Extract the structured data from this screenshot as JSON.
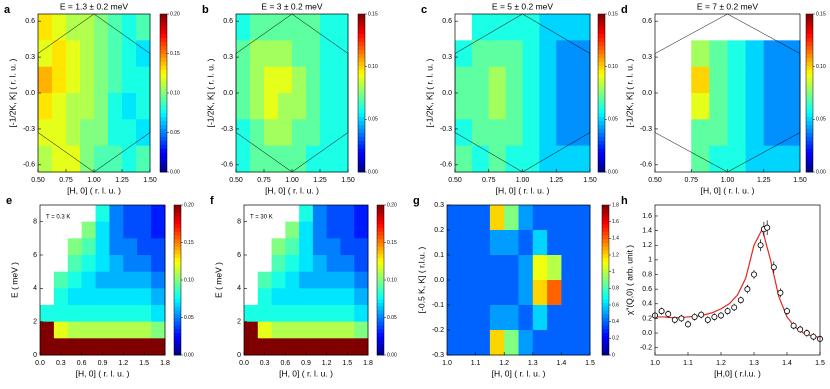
{
  "chart_data": [
    {
      "type": "heatmap",
      "panel_label": "a",
      "title": "E = 1.3 ± 0.2 meV",
      "x_label": "[H, 0] ( r. l. u. )",
      "y_label": "[-1/2K, K] ( r. l. u. )",
      "xlim": [
        0.5,
        1.5
      ],
      "xticks": [
        {
          "value": 0.5,
          "label": "0.50"
        },
        0.75,
        {
          "value": 1,
          "label": "1.00"
        },
        1.25,
        {
          "value": 1.5,
          "label": "1.50"
        }
      ],
      "ylim": [
        -0.66,
        0.66
      ],
      "yticks": [
        -0.6,
        -0.3,
        {
          "value": 0,
          "label": "0.0"
        },
        0.3,
        0.6
      ],
      "zlim": [
        0,
        0.2
      ],
      "zticks": [
        {
          "value": 0,
          "label": "0.00"
        },
        0.05,
        {
          "value": 0.1,
          "label": "0.10"
        },
        0.15,
        {
          "value": 0.2,
          "label": "0.20"
        }
      ],
      "z": [
        [
          0.13,
          0.12,
          0.11,
          0.11,
          0.1,
          0.09,
          0.08,
          0.09
        ],
        [
          0.12,
          0.13,
          0.12,
          0.11,
          0.1,
          0.09,
          0.08,
          0.07
        ],
        [
          0.14,
          0.13,
          0.12,
          0.11,
          0.1,
          0.09,
          0.08,
          0.08
        ],
        [
          0.13,
          0.12,
          0.11,
          0.11,
          0.1,
          0.08,
          0.07,
          0.08
        ],
        [
          0.12,
          0.12,
          0.11,
          0.1,
          0.1,
          0.08,
          0.08,
          0.07
        ],
        [
          0.11,
          0.12,
          0.12,
          0.1,
          0.09,
          0.09,
          0.08,
          0.09
        ]
      ]
    },
    {
      "type": "heatmap",
      "panel_label": "b",
      "title": "E = 3 ± 0.2 meV",
      "x_label": "[H, 0] ( r. l. u. )",
      "y_label": "[-1/2K, K] ( r. l. u. )",
      "xlim": [
        0.5,
        1.5
      ],
      "xticks": [
        {
          "value": 0.5,
          "label": "0.50"
        },
        0.75,
        {
          "value": 1,
          "label": "1.00"
        },
        1.25,
        {
          "value": 1.5,
          "label": "1.50"
        }
      ],
      "ylim": [
        -0.66,
        0.66
      ],
      "yticks": [
        -0.6,
        -0.3,
        {
          "value": 0,
          "label": "0.0"
        },
        0.3,
        0.6
      ],
      "zlim": [
        0,
        0.15
      ],
      "zticks": [
        {
          "value": 0,
          "label": "0.00"
        },
        0.05,
        {
          "value": 0.1,
          "label": "0.10"
        },
        0.15
      ],
      "z": [
        [
          0.06,
          0.07,
          0.07,
          0.07,
          0.07,
          0.07,
          0.06,
          0.06
        ],
        [
          0.07,
          0.08,
          0.08,
          0.08,
          0.07,
          0.07,
          0.06,
          0.06
        ],
        [
          0.07,
          0.08,
          0.09,
          0.09,
          0.08,
          0.07,
          0.06,
          0.06
        ],
        [
          0.07,
          0.08,
          0.09,
          0.08,
          0.08,
          0.07,
          0.06,
          0.06
        ],
        [
          0.06,
          0.07,
          0.08,
          0.08,
          0.07,
          0.07,
          0.06,
          0.06
        ],
        [
          0.06,
          0.07,
          0.07,
          0.07,
          0.07,
          0.06,
          0.06,
          0.06
        ]
      ]
    },
    {
      "type": "heatmap",
      "panel_label": "c",
      "title": "E = 5 ± 0.2 meV",
      "x_label": "[H, 0] ( r. l. u. )",
      "y_label": "[-1/2K, K] ( r. l. u. )",
      "xlim": [
        0.5,
        1.5
      ],
      "xticks": [
        {
          "value": 0.5,
          "label": "0.50"
        },
        0.75,
        {
          "value": 1,
          "label": "1.00"
        },
        1.25,
        {
          "value": 1.5,
          "label": "1.50"
        }
      ],
      "ylim": [
        -0.66,
        0.66
      ],
      "yticks": [
        -0.6,
        -0.3,
        {
          "value": 0,
          "label": "0.0"
        },
        0.3,
        0.6
      ],
      "zlim": [
        0,
        0.15
      ],
      "zticks": [
        {
          "value": 0,
          "label": "0.00"
        },
        0.05,
        {
          "value": 0.1,
          "label": "0.10"
        },
        0.15
      ],
      "z": [
        [
          null,
          0.06,
          0.06,
          0.06,
          0.06,
          0.05,
          0.05,
          0.05
        ],
        [
          0.06,
          0.07,
          0.07,
          0.07,
          0.06,
          0.05,
          0.04,
          0.04
        ],
        [
          0.07,
          0.07,
          0.08,
          0.07,
          0.06,
          0.05,
          0.04,
          0.04
        ],
        [
          0.07,
          0.07,
          0.08,
          0.07,
          0.06,
          0.05,
          0.04,
          0.04
        ],
        [
          0.06,
          0.07,
          0.07,
          0.07,
          0.06,
          0.05,
          0.04,
          0.04
        ],
        [
          0.07,
          0.06,
          0.07,
          0.06,
          0.06,
          0.05,
          0.05,
          0.05
        ]
      ]
    },
    {
      "type": "heatmap",
      "panel_label": "d",
      "title": "E = 7 ± 0.2 meV",
      "x_label": "[H, 0] ( r. l. u. )",
      "y_label": "[-1/2K, K] ( r. l. u. )",
      "xlim": [
        0.5,
        1.5
      ],
      "xticks": [
        {
          "value": 0.5,
          "label": "0.50"
        },
        0.75,
        {
          "value": 1,
          "label": "1.00"
        },
        1.25,
        {
          "value": 1.5,
          "label": "1.50"
        }
      ],
      "ylim": [
        -0.66,
        0.66
      ],
      "yticks": [
        -0.6,
        -0.3,
        {
          "value": 0,
          "label": "0.0"
        },
        0.3,
        0.6
      ],
      "zlim": [
        0,
        0.15
      ],
      "zticks": [
        {
          "value": 0,
          "label": "0.00"
        },
        0.05,
        {
          "value": 0.1,
          "label": "0.10"
        },
        0.15
      ],
      "z": [
        [
          null,
          null,
          null,
          null,
          null,
          null,
          null,
          null
        ],
        [
          null,
          null,
          0.08,
          0.07,
          0.06,
          0.05,
          0.04,
          0.04
        ],
        [
          null,
          null,
          0.1,
          0.07,
          0.06,
          0.05,
          0.04,
          0.04
        ],
        [
          null,
          null,
          0.09,
          0.07,
          0.06,
          0.05,
          0.04,
          0.04
        ],
        [
          null,
          null,
          0.07,
          0.07,
          0.06,
          0.05,
          0.04,
          0.04
        ],
        [
          null,
          null,
          0.07,
          0.06,
          0.06,
          0.05,
          0.05,
          0.05
        ]
      ]
    },
    {
      "type": "heatmap",
      "panel_label": "e",
      "annotation": "T = 0.3 K",
      "x_label": "[H, 0] ( r. l. u. )",
      "y_label": "E ( meV )",
      "xlim": [
        0,
        1.8
      ],
      "xticks": [
        {
          "value": 0,
          "label": "0.0"
        },
        0.3,
        0.6,
        0.9,
        1.2,
        1.5,
        1.8
      ],
      "ylim": [
        0,
        9
      ],
      "yticks": [
        0,
        2,
        4,
        6,
        8
      ],
      "zlim": [
        0,
        0.2
      ],
      "zticks": [
        {
          "value": 0,
          "label": "0.00"
        },
        0.05,
        {
          "value": 0.1,
          "label": "0.10"
        },
        0.15,
        {
          "value": 0.2,
          "label": "0.20"
        }
      ],
      "z": [
        [
          null,
          null,
          null,
          null,
          0.08,
          0.05,
          0.04,
          0.04,
          0.03
        ],
        [
          null,
          null,
          null,
          0.1,
          0.07,
          0.05,
          0.04,
          0.04,
          0.03
        ],
        [
          null,
          null,
          0.1,
          0.09,
          0.07,
          0.05,
          0.05,
          0.04,
          0.04
        ],
        [
          null,
          null,
          0.09,
          0.08,
          0.07,
          0.06,
          0.05,
          0.05,
          0.04
        ],
        [
          null,
          0.09,
          0.08,
          0.07,
          0.06,
          0.06,
          0.06,
          0.06,
          0.05
        ],
        [
          null,
          0.08,
          0.07,
          0.07,
          0.07,
          0.07,
          0.07,
          0.07,
          0.06
        ],
        [
          0.08,
          0.08,
          0.08,
          0.08,
          0.08,
          0.08,
          0.08,
          0.08,
          0.07
        ],
        [
          0.2,
          0.12,
          0.11,
          0.11,
          0.11,
          0.11,
          0.11,
          0.11,
          0.1
        ],
        [
          0.2,
          0.2,
          0.2,
          0.2,
          0.2,
          0.2,
          0.2,
          0.2,
          0.2
        ]
      ]
    },
    {
      "type": "heatmap",
      "panel_label": "f",
      "annotation": "T = 30 K",
      "x_label": "[H, 0] ( r. l. u. )",
      "y_label": "E ( meV )",
      "xlim": [
        0,
        1.8
      ],
      "xticks": [
        {
          "value": 0,
          "label": "0.0"
        },
        0.3,
        0.6,
        0.9,
        1.2,
        1.5,
        1.8
      ],
      "ylim": [
        0,
        9
      ],
      "yticks": [
        0,
        2,
        4,
        6,
        8
      ],
      "zlim": [
        0,
        0.2
      ],
      "zticks": [
        {
          "value": 0,
          "label": "0.00"
        },
        0.05,
        {
          "value": 0.1,
          "label": "0.10"
        },
        0.15,
        {
          "value": 0.2,
          "label": "0.20"
        }
      ],
      "z": [
        [
          null,
          null,
          null,
          null,
          0.08,
          0.05,
          0.04,
          0.04,
          0.03
        ],
        [
          null,
          null,
          null,
          0.1,
          0.07,
          0.05,
          0.04,
          0.04,
          0.03
        ],
        [
          null,
          null,
          0.1,
          0.09,
          0.07,
          0.05,
          0.05,
          0.04,
          0.04
        ],
        [
          null,
          null,
          0.09,
          0.08,
          0.07,
          0.06,
          0.05,
          0.05,
          0.04
        ],
        [
          null,
          0.09,
          0.08,
          0.07,
          0.06,
          0.06,
          0.06,
          0.06,
          0.05
        ],
        [
          null,
          0.08,
          0.07,
          0.07,
          0.07,
          0.07,
          0.07,
          0.07,
          0.06
        ],
        [
          0.08,
          0.08,
          0.08,
          0.08,
          0.08,
          0.08,
          0.08,
          0.08,
          0.07
        ],
        [
          0.2,
          0.12,
          0.11,
          0.11,
          0.11,
          0.11,
          0.11,
          0.11,
          0.1
        ],
        [
          0.2,
          0.2,
          0.2,
          0.2,
          0.2,
          0.2,
          0.2,
          0.2,
          0.2
        ]
      ]
    },
    {
      "type": "heatmap",
      "panel_label": "g",
      "x_label": "[H, 0] ( r. l. u. )",
      "y_label": "[-0.5 K, K] ( r.l.u. )",
      "xlim": [
        1,
        1.5
      ],
      "xticks": [
        {
          "value": 1,
          "label": "1.0"
        },
        1.1,
        1.2,
        1.3,
        1.4,
        1.5
      ],
      "ylim": [
        -0.3,
        0.3
      ],
      "yticks": [
        -0.3,
        -0.2,
        -0.1,
        {
          "value": 0,
          "label": "0.0"
        },
        0.1,
        0.2,
        0.3
      ],
      "zlim": [
        0,
        1.8
      ],
      "zticks": [
        0,
        0.2,
        0.4,
        0.6,
        0.8,
        1,
        1.2,
        1.4,
        1.6,
        1.8
      ],
      "z": [
        [
          0.4,
          0.4,
          0.4,
          1.2,
          0.9,
          0.5,
          0.4,
          0.4,
          0.4,
          0.4
        ],
        [
          0.4,
          0.4,
          0.4,
          0.5,
          0.5,
          0.4,
          0.6,
          0.4,
          0.4,
          0.4
        ],
        [
          0.4,
          0.4,
          0.4,
          0.4,
          0.4,
          0.5,
          1.1,
          1.0,
          0.4,
          0.4
        ],
        [
          0.4,
          0.4,
          0.4,
          0.4,
          0.4,
          0.5,
          1.2,
          1.4,
          0.4,
          0.4
        ],
        [
          0.4,
          0.4,
          0.4,
          0.5,
          0.5,
          0.4,
          0.6,
          0.4,
          0.4,
          0.4
        ],
        [
          0.4,
          0.4,
          0.4,
          1.2,
          0.9,
          0.5,
          0.4,
          0.4,
          0.4,
          0.4
        ]
      ]
    },
    {
      "type": "scatter",
      "panel_label": "h",
      "x_label": "[H,0] ( r.l.u. )",
      "y_label": "χ″(Q,0) ( arb. unit )",
      "xlim": [
        1,
        1.5
      ],
      "xticks": [
        {
          "value": 1,
          "label": "1.0"
        },
        1.1,
        1.2,
        1.3,
        1.4,
        1.5
      ],
      "ylim": [
        -0.3,
        1.75
      ],
      "yticks": [
        -0.2,
        {
          "value": 0,
          "label": "0.0"
        },
        0.2,
        0.4,
        0.6,
        0.8,
        1,
        1.2,
        1.4,
        1.6
      ],
      "x": [
        1.0,
        1.02,
        1.04,
        1.06,
        1.08,
        1.1,
        1.12,
        1.14,
        1.16,
        1.18,
        1.2,
        1.22,
        1.24,
        1.26,
        1.28,
        1.3,
        1.32,
        1.33,
        1.34,
        1.36,
        1.38,
        1.4,
        1.42,
        1.44,
        1.46,
        1.48,
        1.5
      ],
      "values": [
        0.24,
        0.3,
        0.26,
        0.18,
        0.2,
        0.12,
        0.22,
        0.25,
        0.18,
        0.22,
        0.24,
        0.3,
        0.35,
        0.45,
        0.6,
        0.8,
        1.2,
        1.42,
        1.44,
        0.9,
        0.55,
        0.3,
        0.1,
        0.05,
        0.0,
        -0.05,
        -0.08
      ],
      "errors": [
        0.05,
        0.05,
        0.05,
        0.05,
        0.05,
        0.05,
        0.05,
        0.05,
        0.05,
        0.05,
        0.05,
        0.05,
        0.05,
        0.05,
        0.06,
        0.06,
        0.08,
        0.1,
        0.1,
        0.08,
        0.06,
        0.05,
        0.05,
        0.05,
        0.05,
        0.05,
        0.05
      ],
      "color": "#000000",
      "fit": {
        "color": "#e8231f",
        "x": [
          1.0,
          1.025,
          1.05,
          1.075,
          1.1,
          1.125,
          1.15,
          1.175,
          1.2,
          1.225,
          1.25,
          1.275,
          1.3,
          1.325,
          1.35,
          1.375,
          1.4,
          1.425,
          1.45,
          1.475,
          1.5
        ],
        "values": [
          0.22,
          0.22,
          0.21,
          0.21,
          0.22,
          0.23,
          0.25,
          0.28,
          0.33,
          0.4,
          0.52,
          0.75,
          1.2,
          1.42,
          1.0,
          0.5,
          0.22,
          0.08,
          0.0,
          -0.04,
          -0.06
        ]
      }
    }
  ]
}
